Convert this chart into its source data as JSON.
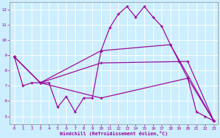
{
  "bg_color": "#cceeff",
  "line_color": "#990099",
  "grid_color": "#ffffff",
  "xlabel": "Windchill (Refroidissement éolien,°C)",
  "xlim": [
    -0.5,
    23.5
  ],
  "ylim": [
    4.5,
    12.5
  ],
  "yticks": [
    5,
    6,
    7,
    8,
    9,
    10,
    11,
    12
  ],
  "xticks": [
    0,
    1,
    2,
    3,
    4,
    5,
    6,
    7,
    8,
    9,
    10,
    11,
    12,
    13,
    14,
    15,
    16,
    17,
    18,
    19,
    20,
    21,
    22,
    23
  ],
  "lines": [
    {
      "x": [
        0,
        1,
        2,
        3,
        4,
        5,
        6,
        7,
        8,
        9,
        10,
        11,
        12,
        13,
        14,
        15,
        16,
        17,
        18,
        19,
        20,
        21,
        22,
        23
      ],
      "y": [
        8.9,
        7.0,
        7.2,
        7.2,
        7.2,
        5.6,
        6.3,
        5.3,
        6.2,
        6.2,
        9.3,
        10.8,
        11.7,
        12.2,
        11.5,
        12.2,
        11.5,
        10.9,
        9.7,
        8.6,
        7.5,
        5.3,
        5.0,
        4.7
      ]
    },
    {
      "x": [
        0,
        3,
        10,
        18,
        23
      ],
      "y": [
        8.9,
        7.2,
        9.3,
        9.7,
        4.7
      ]
    },
    {
      "x": [
        0,
        3,
        10,
        20,
        23
      ],
      "y": [
        8.9,
        7.2,
        8.5,
        8.6,
        4.7
      ]
    },
    {
      "x": [
        0,
        3,
        10,
        20,
        23
      ],
      "y": [
        8.9,
        7.2,
        6.2,
        7.5,
        4.7
      ]
    }
  ]
}
